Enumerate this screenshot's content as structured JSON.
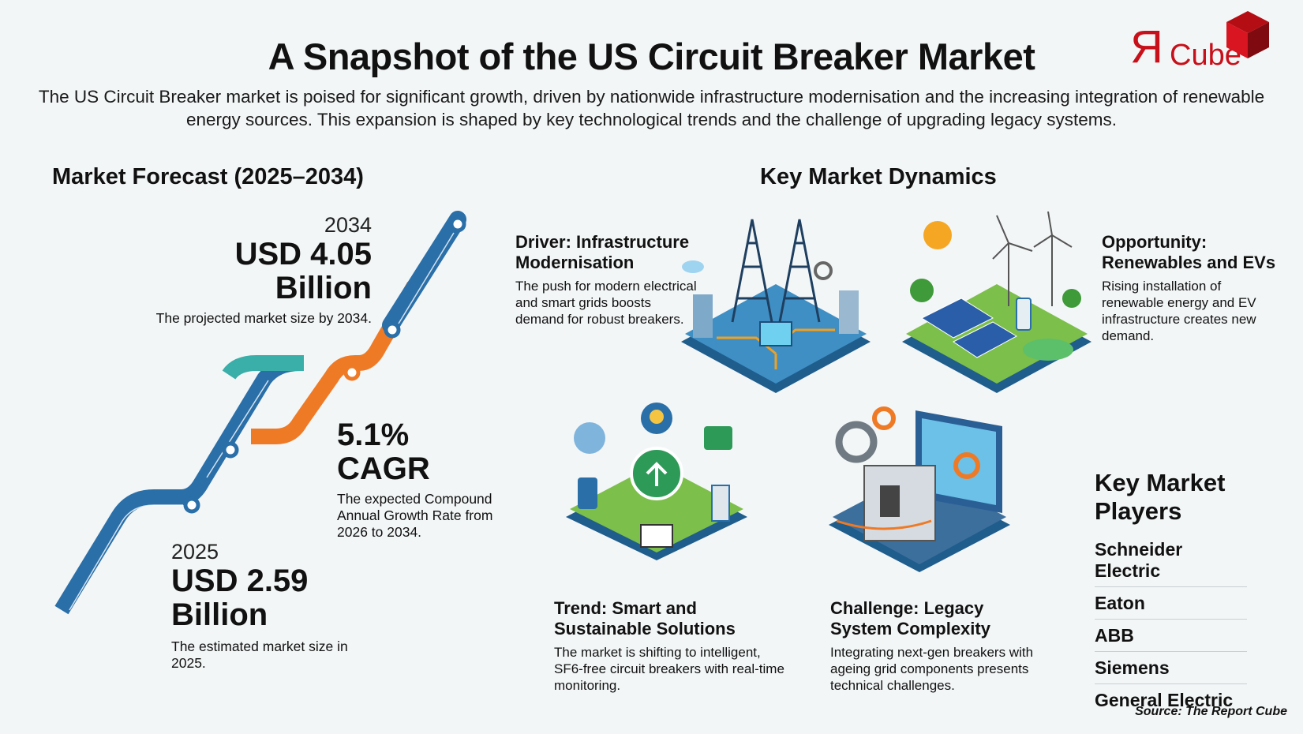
{
  "header": {
    "title": "A Snapshot of the US Circuit Breaker Market",
    "subtitle": "The US Circuit Breaker market is poised for significant growth, driven by nationwide infrastructure modernisation and the increasing integration of renewable energy sources. This expansion is shaped by key technological trends and the challenge of upgrading legacy systems.",
    "logo": {
      "mark": "Я",
      "text": "Cube",
      "color": "#c8101a"
    }
  },
  "forecast": {
    "heading": "Market Forecast (2025–2034)",
    "end": {
      "year": "2034",
      "value": "USD 4.05",
      "unit": "Billion",
      "desc": "The projected market size by 2034."
    },
    "cagr": {
      "value": "5.1%",
      "label": "CAGR",
      "desc": "The expected Compound Annual Growth Rate from 2026 to 2034."
    },
    "start": {
      "year": "2025",
      "value": "USD 2.59",
      "unit": "Billion",
      "desc": "The estimated market size in 2025."
    },
    "colors": {
      "blue": "#2a6fa8",
      "teal": "#3aaea8",
      "orange": "#ef7a26"
    }
  },
  "dynamics": {
    "heading": "Key Market Dynamics",
    "items": [
      {
        "title": "Driver: Infrastructure Modernisation",
        "desc": "The push for modern electrical and smart grids boosts demand for robust breakers.",
        "icon": "power-grid-illustration"
      },
      {
        "title": "Opportunity: Renewables and EVs",
        "desc": "Rising installation of renewable energy and EV infrastructure creates new demand.",
        "icon": "renewables-ev-illustration"
      },
      {
        "title": "Trend: Smart and Sustainable Solutions",
        "desc": "The market is shifting to intelligent, SF6-free circuit breakers with real-time monitoring.",
        "icon": "smart-sustainable-illustration"
      },
      {
        "title": "Challenge: Legacy System Complexity",
        "desc": "Integrating next-gen breakers with ageing grid components presents technical challenges.",
        "icon": "legacy-breaker-illustration"
      }
    ]
  },
  "players": {
    "heading": "Key Market Players",
    "list": [
      "Schneider Electric",
      "Eaton",
      "ABB",
      "Siemens",
      "General Electric"
    ]
  },
  "source": "Source: The Report Cube"
}
